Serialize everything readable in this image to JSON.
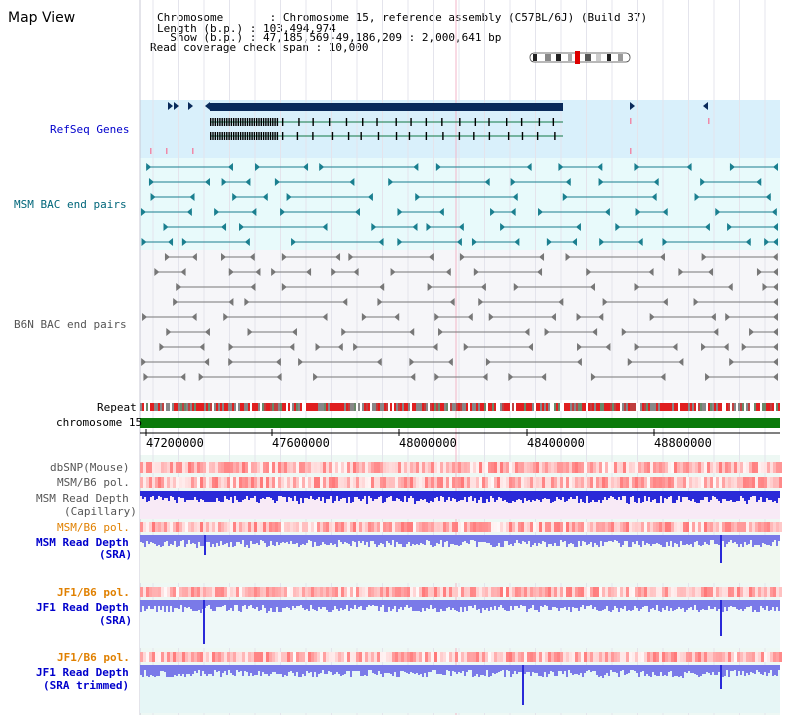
{
  "title": "Map View",
  "header": {
    "chromosome_line": "Chromosome       : Chromosome 15, reference assembly (C57BL/6J) (Build 37)",
    "length_line": "Length (b.p.) : 103,494,974",
    "show_line": "  Show (b.p.) : 47,185,569-49,186,209 : 2,000,641 bp",
    "coverage_line": "Read coverage check span : 10,000"
  },
  "tracks": {
    "refseq": "RefSeq Genes",
    "msm_bac": "MSM BAC end pairs",
    "b6n_bac": "B6N BAC end pairs",
    "repeat": "Repeat",
    "chromosome": "chromosome 15",
    "dbsnp": "dbSNP(Mouse)",
    "msm_b6_pol_1": "MSM/B6 pol.",
    "msm_depth_cap_1": "MSM Read Depth",
    "msm_depth_cap_2": "(Capillary)",
    "msm_b6_pol_2": "MSM/B6 pol.",
    "msm_depth_sra_1": "MSM Read Depth",
    "msm_depth_sra_2": "(SRA)",
    "jf1_b6_pol_1": "JF1/B6 pol.",
    "jf1_depth_sra_1": "JF1 Read Depth",
    "jf1_depth_sra_2": "(SRA)",
    "jf1_b6_pol_2": "JF1/B6 pol.",
    "jf1_depth_trim_1": "JF1 Read Depth",
    "jf1_depth_trim_2": "(SRA trimmed)"
  },
  "axis": {
    "ticks": [
      "47200000",
      "47600000",
      "48000000",
      "48400000",
      "48800000"
    ]
  },
  "colors": {
    "refseq_bg": "#d9f0fb",
    "msm_bac_bg": "#e8fafb",
    "gene": "#0a2a5a",
    "msm_bac": "#1a7f8f",
    "b6n_bac": "#777777",
    "chromosome": "#0a7a0a",
    "depth_dark": "#2a2ad8",
    "depth_light": "#7a7ae8",
    "pol": "#e85a5a",
    "label_blue": "#0000cc",
    "label_teal": "#00667a",
    "label_gray": "#555555",
    "label_orange": "#e08000"
  }
}
